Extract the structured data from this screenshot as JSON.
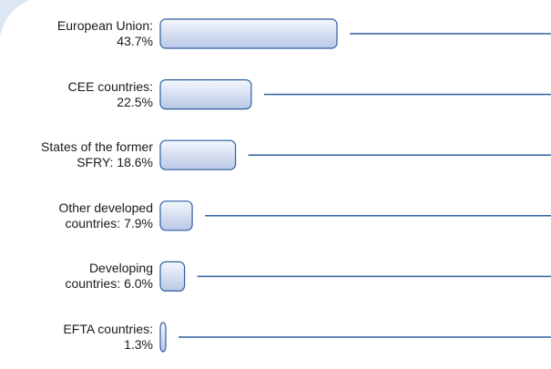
{
  "chart_data": {
    "type": "bar",
    "orientation": "horizontal",
    "categories": [
      "European Union:",
      "CEE countries:",
      "States of the former SFRY:",
      "Other developed countries:",
      "Developing countries:",
      "EFTA countries:"
    ],
    "values": [
      43.7,
      22.5,
      18.6,
      7.9,
      6.0,
      1.3
    ],
    "value_labels": [
      "43.7%",
      "22.5%",
      "18.6%",
      "7.9%",
      "6.0%",
      "1.3%"
    ],
    "color": "#2d5fa0"
  }
}
